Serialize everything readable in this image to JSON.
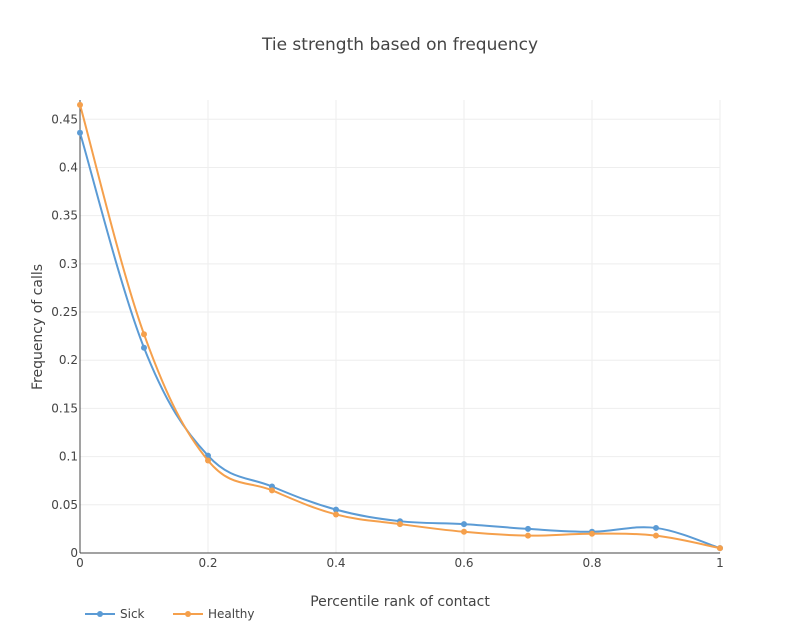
{
  "chart_data": {
    "type": "line",
    "title": "Tie strength based on frequency",
    "xlabel": "Percentile rank of contact",
    "ylabel": "Frequency of calls",
    "xlim": [
      0,
      1
    ],
    "ylim": [
      0,
      0.47
    ],
    "x_ticks": [
      0,
      0.2,
      0.4,
      0.6,
      0.8,
      1
    ],
    "x_tick_labels": [
      "0",
      "0.2",
      "0.4",
      "0.6",
      "0.8",
      "1"
    ],
    "y_ticks": [
      0,
      0.05,
      0.1,
      0.15,
      0.2,
      0.25,
      0.3,
      0.35,
      0.4,
      0.45
    ],
    "y_tick_labels": [
      "0",
      "0.05",
      "0.1",
      "0.15",
      "0.2",
      "0.25",
      "0.3",
      "0.35",
      "0.4",
      "0.45"
    ],
    "grid": true,
    "legend_position": "bottom-left",
    "x": [
      0,
      0.1,
      0.2,
      0.3,
      0.4,
      0.5,
      0.6,
      0.7,
      0.8,
      0.9,
      1.0
    ],
    "series": [
      {
        "name": "Sick",
        "color": "#5b9bd5",
        "values": [
          0.436,
          0.213,
          0.101,
          0.069,
          0.045,
          0.033,
          0.03,
          0.025,
          0.022,
          0.026,
          0.005
        ]
      },
      {
        "name": "Healthy",
        "color": "#f5a04c",
        "values": [
          0.465,
          0.227,
          0.096,
          0.065,
          0.04,
          0.03,
          0.022,
          0.018,
          0.02,
          0.018,
          0.005
        ]
      }
    ]
  }
}
